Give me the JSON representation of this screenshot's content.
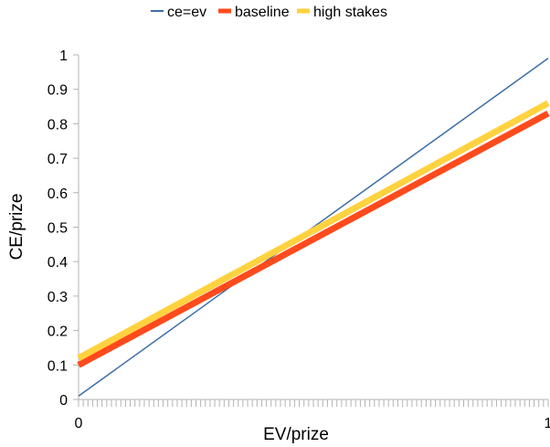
{
  "chart_data": {
    "type": "line",
    "title": "",
    "xlabel": "EV/prize",
    "ylabel": "CE/prize",
    "xlim": [
      0,
      1
    ],
    "ylim": [
      0,
      1
    ],
    "x_tick_labels": [
      "0",
      "1"
    ],
    "y_tick_labels": [
      "0",
      "0.1",
      "0.2",
      "0.3",
      "0.4",
      "0.5",
      "0.6",
      "0.7",
      "0.8",
      "0.9",
      "1"
    ],
    "grid": false,
    "legend_position": "top",
    "series": [
      {
        "name": "ce=ev",
        "color": "#3c6fa6",
        "x": [
          0,
          1
        ],
        "y": [
          0.01,
          0.99
        ]
      },
      {
        "name": "baseline",
        "color": "#ff4a1c",
        "x": [
          0,
          1
        ],
        "y": [
          0.1,
          0.83
        ]
      },
      {
        "name": "high stakes",
        "color": "#ffd23f",
        "x": [
          0,
          1
        ],
        "y": [
          0.12,
          0.86
        ]
      }
    ]
  }
}
